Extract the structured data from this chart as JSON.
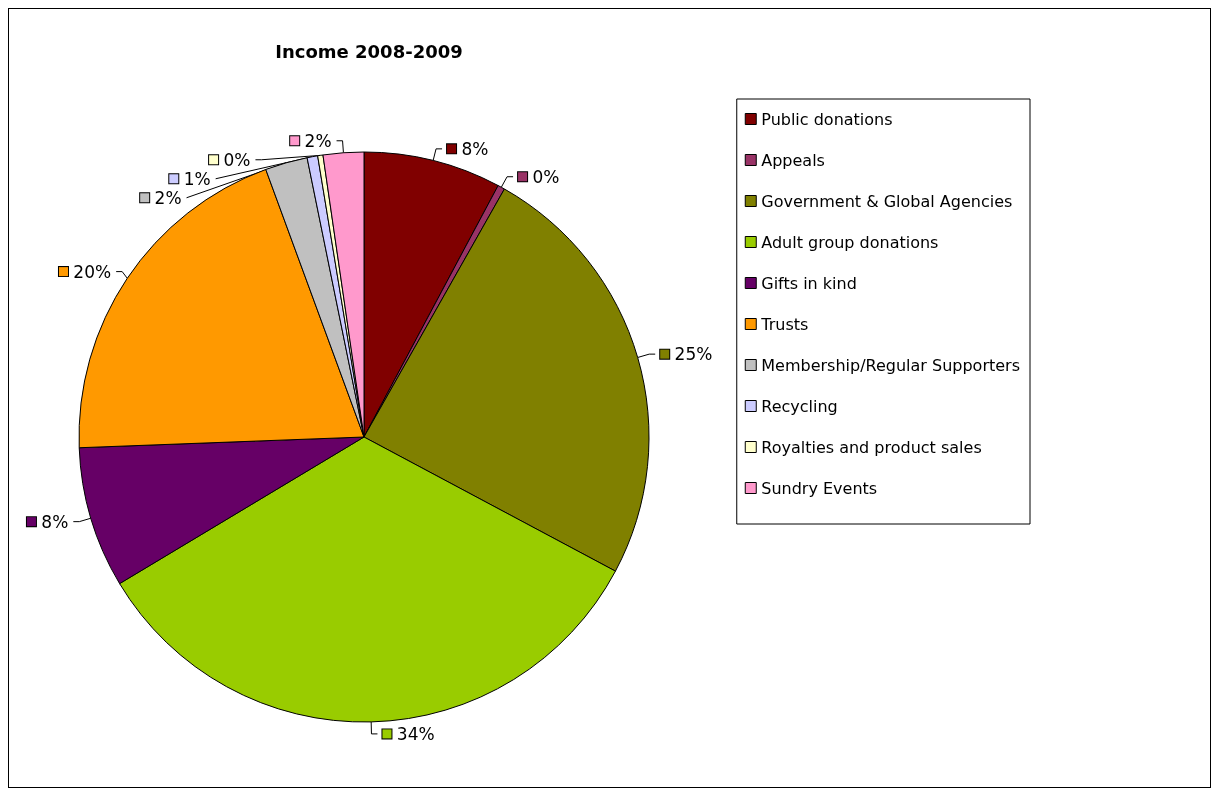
{
  "chart_data": {
    "type": "pie",
    "title": "Income 2008-2009",
    "categories": [
      "Public donations",
      "Appeals",
      "Government & Global Agencies",
      "Adult group donations",
      "Gifts in kind",
      "Trusts",
      "Membership/Regular Supporters",
      "Recycling",
      "Royalties and product sales",
      "Sundry Events"
    ],
    "values": [
      7.8,
      0.4,
      24.6,
      33.6,
      8.0,
      20.0,
      2.4,
      0.6,
      0.3,
      2.3
    ],
    "value_labels": [
      "8%",
      "0%",
      "25%",
      "34%",
      "8%",
      "20%",
      "2%",
      "1%",
      "0%",
      "2%"
    ],
    "colors": [
      "#800000",
      "#993366",
      "#808000",
      "#99cc00",
      "#660066",
      "#ff9900",
      "#c0c0c0",
      "#ccccff",
      "#ffffcc",
      "#ff99cc"
    ],
    "legend": "right"
  }
}
